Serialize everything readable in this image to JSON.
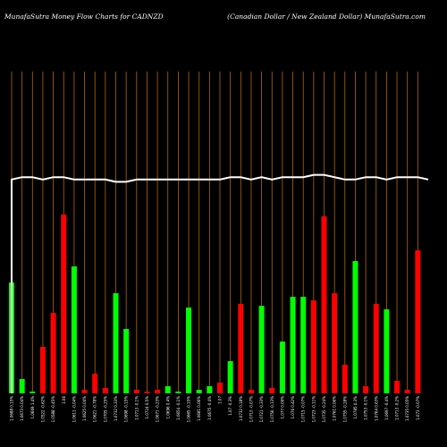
{
  "header": {
    "title_left": "MunafaSutra  Money  Flow  Charts for CADNZD",
    "title_right": "(Canadian  Dollar / New  Zealand Dollar) MunafaSutra.com"
  },
  "chart_data": {
    "type": "bar",
    "bar_max": 100,
    "line_range": [
      0,
      100
    ],
    "colors": {
      "background": "#000000",
      "up": "#00ff00",
      "down": "#ff0000",
      "grid": "#b8650a",
      "line": "#ffffff"
    },
    "bars": [
      {
        "label": "1.0688 0.15%",
        "value": 62,
        "dir": "up"
      },
      {
        "label": "1.0673 0.04%",
        "value": 8,
        "dir": "up"
      },
      {
        "label": "1.0669 1.4%",
        "value": 1,
        "dir": "up"
      },
      {
        "label": "1.0522 -0.62%",
        "value": 26,
        "dir": "down"
      },
      {
        "label": "1.0588 -0.45%",
        "value": 45,
        "dir": "down"
      },
      {
        "label": "1.06",
        "value": 100,
        "dir": "down"
      },
      {
        "label": "1.0611 -0.04%",
        "value": 71,
        "dir": "up"
      },
      {
        "label": "1.0625 0.04%",
        "value": 2,
        "dir": "down"
      },
      {
        "label": "1.0621 -0.78%",
        "value": 11,
        "dir": "down"
      },
      {
        "label": "1.0705 -0.25%",
        "value": 3,
        "dir": "down"
      },
      {
        "label": "1.0732 0.33%",
        "value": 56,
        "dir": "up"
      },
      {
        "label": "1.0698 -0.15%",
        "value": 36,
        "dir": "up"
      },
      {
        "label": "1.0713 -0.1%",
        "value": 2,
        "dir": "down"
      },
      {
        "label": "1.0724 0.5%",
        "value": 1,
        "dir": "down"
      },
      {
        "label": "1.0671 -0.23%",
        "value": 2,
        "dir": "down"
      },
      {
        "label": "1.0696 0.4%",
        "value": 4,
        "dir": "up"
      },
      {
        "label": "1.0654 -0.1%",
        "value": 1,
        "dir": "up"
      },
      {
        "label": "1.0665 -0.15%",
        "value": 48,
        "dir": "up"
      },
      {
        "label": "1.0681 0.06%",
        "value": 2,
        "dir": "up"
      },
      {
        "label": "1.0675 -0.4%",
        "value": 4,
        "dir": "up"
      },
      {
        "label": "1.07",
        "value": 6,
        "dir": "down"
      },
      {
        "label": "1.07 -0.3%",
        "value": 18,
        "dir": "up"
      },
      {
        "label": "1.0732 0.18%",
        "value": 50,
        "dir": "down"
      },
      {
        "label": "1.0713 -0.07%",
        "value": 2,
        "dir": "down"
      },
      {
        "label": "1.0721 -0.33%",
        "value": 49,
        "dir": "up"
      },
      {
        "label": "1.0756 -0.13%",
        "value": 3,
        "dir": "down"
      },
      {
        "label": "1.077 0.09%",
        "value": 29,
        "dir": "up"
      },
      {
        "label": "1.076 0.42%",
        "value": 54,
        "dir": "up"
      },
      {
        "label": "1.0715 -0.07%",
        "value": 54,
        "dir": "up"
      },
      {
        "label": "1.0723 -0.11%",
        "value": 52,
        "dir": "down"
      },
      {
        "label": "1.0735 -0.24%",
        "value": 99,
        "dir": "down"
      },
      {
        "label": "1.0761 0.06%",
        "value": 56,
        "dir": "down"
      },
      {
        "label": "1.0755 -0.28%",
        "value": 16,
        "dir": "down"
      },
      {
        "label": "1.0785 0.3%",
        "value": 74,
        "dir": "up"
      },
      {
        "label": "1.0753 -0.1%",
        "value": 4,
        "dir": "down"
      },
      {
        "label": "1.0764 0.63%",
        "value": 50,
        "dir": "down"
      },
      {
        "label": "1.0697 -0.4%",
        "value": 47,
        "dir": "up"
      },
      {
        "label": "1.0713 -0.2%",
        "value": 7,
        "dir": "down"
      },
      {
        "label": "1.0735 0.05%",
        "value": 2,
        "dir": "down"
      },
      {
        "label": "1.073 -0.07%",
        "value": 80,
        "dir": "down"
      }
    ],
    "price_line": [
      92,
      93,
      93,
      92,
      93,
      93,
      92,
      92,
      92,
      92,
      91,
      91,
      92,
      92,
      92,
      92,
      92,
      92,
      92,
      92,
      92,
      93,
      93,
      92,
      93,
      92,
      93,
      93,
      93,
      94,
      94,
      93,
      92,
      92,
      93,
      93,
      92,
      93,
      93,
      93,
      92
    ]
  }
}
